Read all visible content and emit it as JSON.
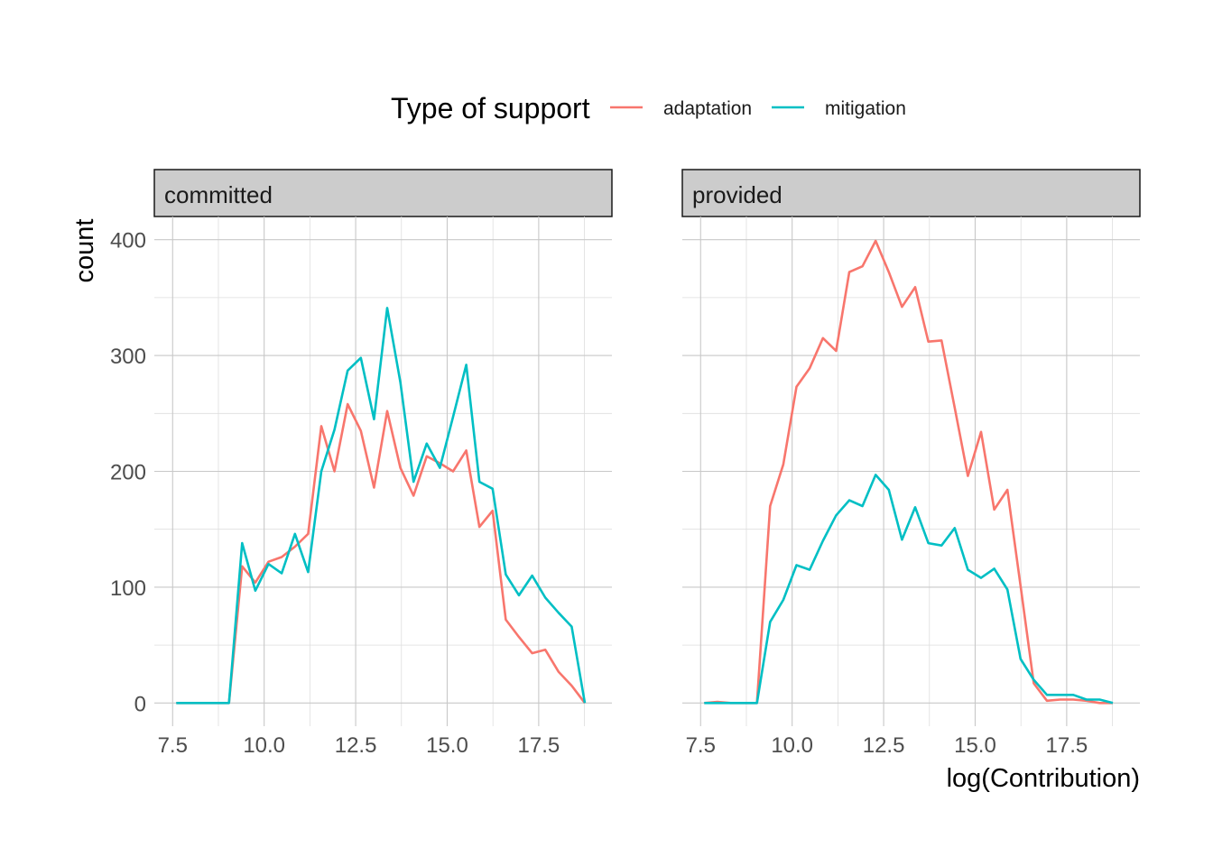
{
  "legend": {
    "title": "Type of support",
    "items": [
      {
        "label": "adaptation",
        "color": "#F8766D"
      },
      {
        "label": "mitigation",
        "color": "#00BFC4"
      }
    ]
  },
  "axes": {
    "xlabel": "log(Contribution)",
    "ylabel": "count",
    "xlim": [
      7.0,
      19.5
    ],
    "ylim": [
      -20,
      420
    ],
    "x_ticks": [
      7.5,
      10.0,
      12.5,
      15.0,
      17.5
    ],
    "x_tick_labels": [
      "7.5",
      "10.0",
      "12.5",
      "15.0",
      "17.5"
    ],
    "y_ticks": [
      0,
      100,
      200,
      300,
      400
    ],
    "y_tick_labels": [
      "0",
      "100",
      "200",
      "300",
      "400"
    ],
    "grid": true
  },
  "chart_data": [
    {
      "type": "line",
      "facet": "committed",
      "series": [
        {
          "name": "adaptation",
          "color": "#F8766D",
          "x": [
            7.6,
            7.96,
            8.32,
            8.68,
            9.04,
            9.4,
            9.76,
            10.12,
            10.48,
            10.84,
            11.2,
            11.56,
            11.92,
            12.28,
            12.64,
            13.0,
            13.36,
            13.72,
            14.08,
            14.44,
            14.8,
            15.16,
            15.52,
            15.88,
            16.24,
            16.6,
            16.96,
            17.32,
            17.68,
            18.04,
            18.4,
            18.76
          ],
          "y": [
            0,
            0,
            0,
            0,
            0,
            118,
            104,
            122,
            126,
            135,
            146,
            239,
            200,
            258,
            235,
            186,
            252,
            203,
            179,
            213,
            207,
            200,
            218,
            152,
            166,
            72,
            57,
            43,
            46,
            27,
            15,
            0
          ]
        },
        {
          "name": "mitigation",
          "color": "#00BFC4",
          "x": [
            7.6,
            7.96,
            8.32,
            8.68,
            9.04,
            9.4,
            9.76,
            10.12,
            10.48,
            10.84,
            11.2,
            11.56,
            11.92,
            12.28,
            12.64,
            13.0,
            13.36,
            13.72,
            14.08,
            14.44,
            14.8,
            15.16,
            15.52,
            15.88,
            16.24,
            16.6,
            16.96,
            17.32,
            17.68,
            18.04,
            18.4,
            18.76
          ],
          "y": [
            0,
            0,
            0,
            0,
            0,
            138,
            97,
            120,
            112,
            146,
            113,
            200,
            236,
            287,
            298,
            245,
            341,
            277,
            191,
            224,
            203,
            247,
            292,
            191,
            185,
            111,
            93,
            110,
            91,
            78,
            66,
            0
          ]
        }
      ]
    },
    {
      "type": "line",
      "facet": "provided",
      "series": [
        {
          "name": "adaptation",
          "color": "#F8766D",
          "x": [
            7.6,
            7.96,
            8.32,
            8.68,
            9.04,
            9.4,
            9.76,
            10.12,
            10.48,
            10.84,
            11.2,
            11.56,
            11.92,
            12.28,
            12.64,
            13.0,
            13.36,
            13.72,
            14.08,
            14.44,
            14.8,
            15.16,
            15.52,
            15.88,
            16.24,
            16.6,
            16.96,
            17.32,
            17.68,
            18.04,
            18.4,
            18.76
          ],
          "y": [
            0,
            1,
            0,
            0,
            0,
            170,
            206,
            273,
            289,
            315,
            304,
            372,
            377,
            399,
            372,
            342,
            359,
            312,
            313,
            255,
            196,
            234,
            167,
            184,
            101,
            17,
            2,
            3,
            3,
            2,
            0,
            0
          ]
        },
        {
          "name": "mitigation",
          "color": "#00BFC4",
          "x": [
            7.6,
            7.96,
            8.32,
            8.68,
            9.04,
            9.4,
            9.76,
            10.12,
            10.48,
            10.84,
            11.2,
            11.56,
            11.92,
            12.28,
            12.64,
            13.0,
            13.36,
            13.72,
            14.08,
            14.44,
            14.8,
            15.16,
            15.52,
            15.88,
            16.24,
            16.6,
            16.96,
            17.32,
            17.68,
            18.04,
            18.4,
            18.76
          ],
          "y": [
            0,
            0,
            0,
            0,
            0,
            70,
            89,
            119,
            115,
            140,
            162,
            175,
            170,
            197,
            184,
            141,
            169,
            138,
            136,
            151,
            115,
            108,
            116,
            98,
            38,
            20,
            7,
            7,
            7,
            3,
            3,
            0
          ]
        }
      ]
    }
  ]
}
